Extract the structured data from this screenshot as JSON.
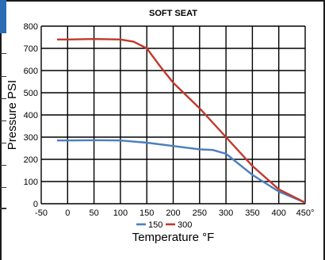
{
  "chart_data": {
    "type": "line",
    "title": "SOFT SEAT",
    "xlabel": "Temperature °F",
    "ylabel": "Pressure PSI",
    "x_ticks": [
      "-50",
      "0",
      "50",
      "100",
      "150",
      "200",
      "250",
      "300",
      "350",
      "400",
      "450°"
    ],
    "y_ticks": [
      "0",
      "100",
      "200",
      "300",
      "400",
      "500",
      "600",
      "700",
      "800"
    ],
    "xlim": [
      -50,
      450
    ],
    "ylim": [
      0,
      800
    ],
    "grid": true,
    "legend_position": "bottom",
    "series": [
      {
        "name": "150",
        "color": "#4a7fc1",
        "points": [
          [
            -20,
            285
          ],
          [
            0,
            285
          ],
          [
            50,
            286
          ],
          [
            100,
            285
          ],
          [
            150,
            275
          ],
          [
            200,
            260
          ],
          [
            250,
            245
          ],
          [
            275,
            242
          ],
          [
            300,
            225
          ],
          [
            350,
            130
          ],
          [
            400,
            55
          ],
          [
            450,
            5
          ]
        ]
      },
      {
        "name": "300",
        "color": "#c0392b",
        "points": [
          [
            -20,
            740
          ],
          [
            0,
            740
          ],
          [
            50,
            742
          ],
          [
            100,
            740
          ],
          [
            125,
            730
          ],
          [
            150,
            700
          ],
          [
            175,
            620
          ],
          [
            200,
            545
          ],
          [
            250,
            430
          ],
          [
            300,
            300
          ],
          [
            350,
            170
          ],
          [
            400,
            65
          ],
          [
            450,
            5
          ]
        ]
      }
    ]
  }
}
